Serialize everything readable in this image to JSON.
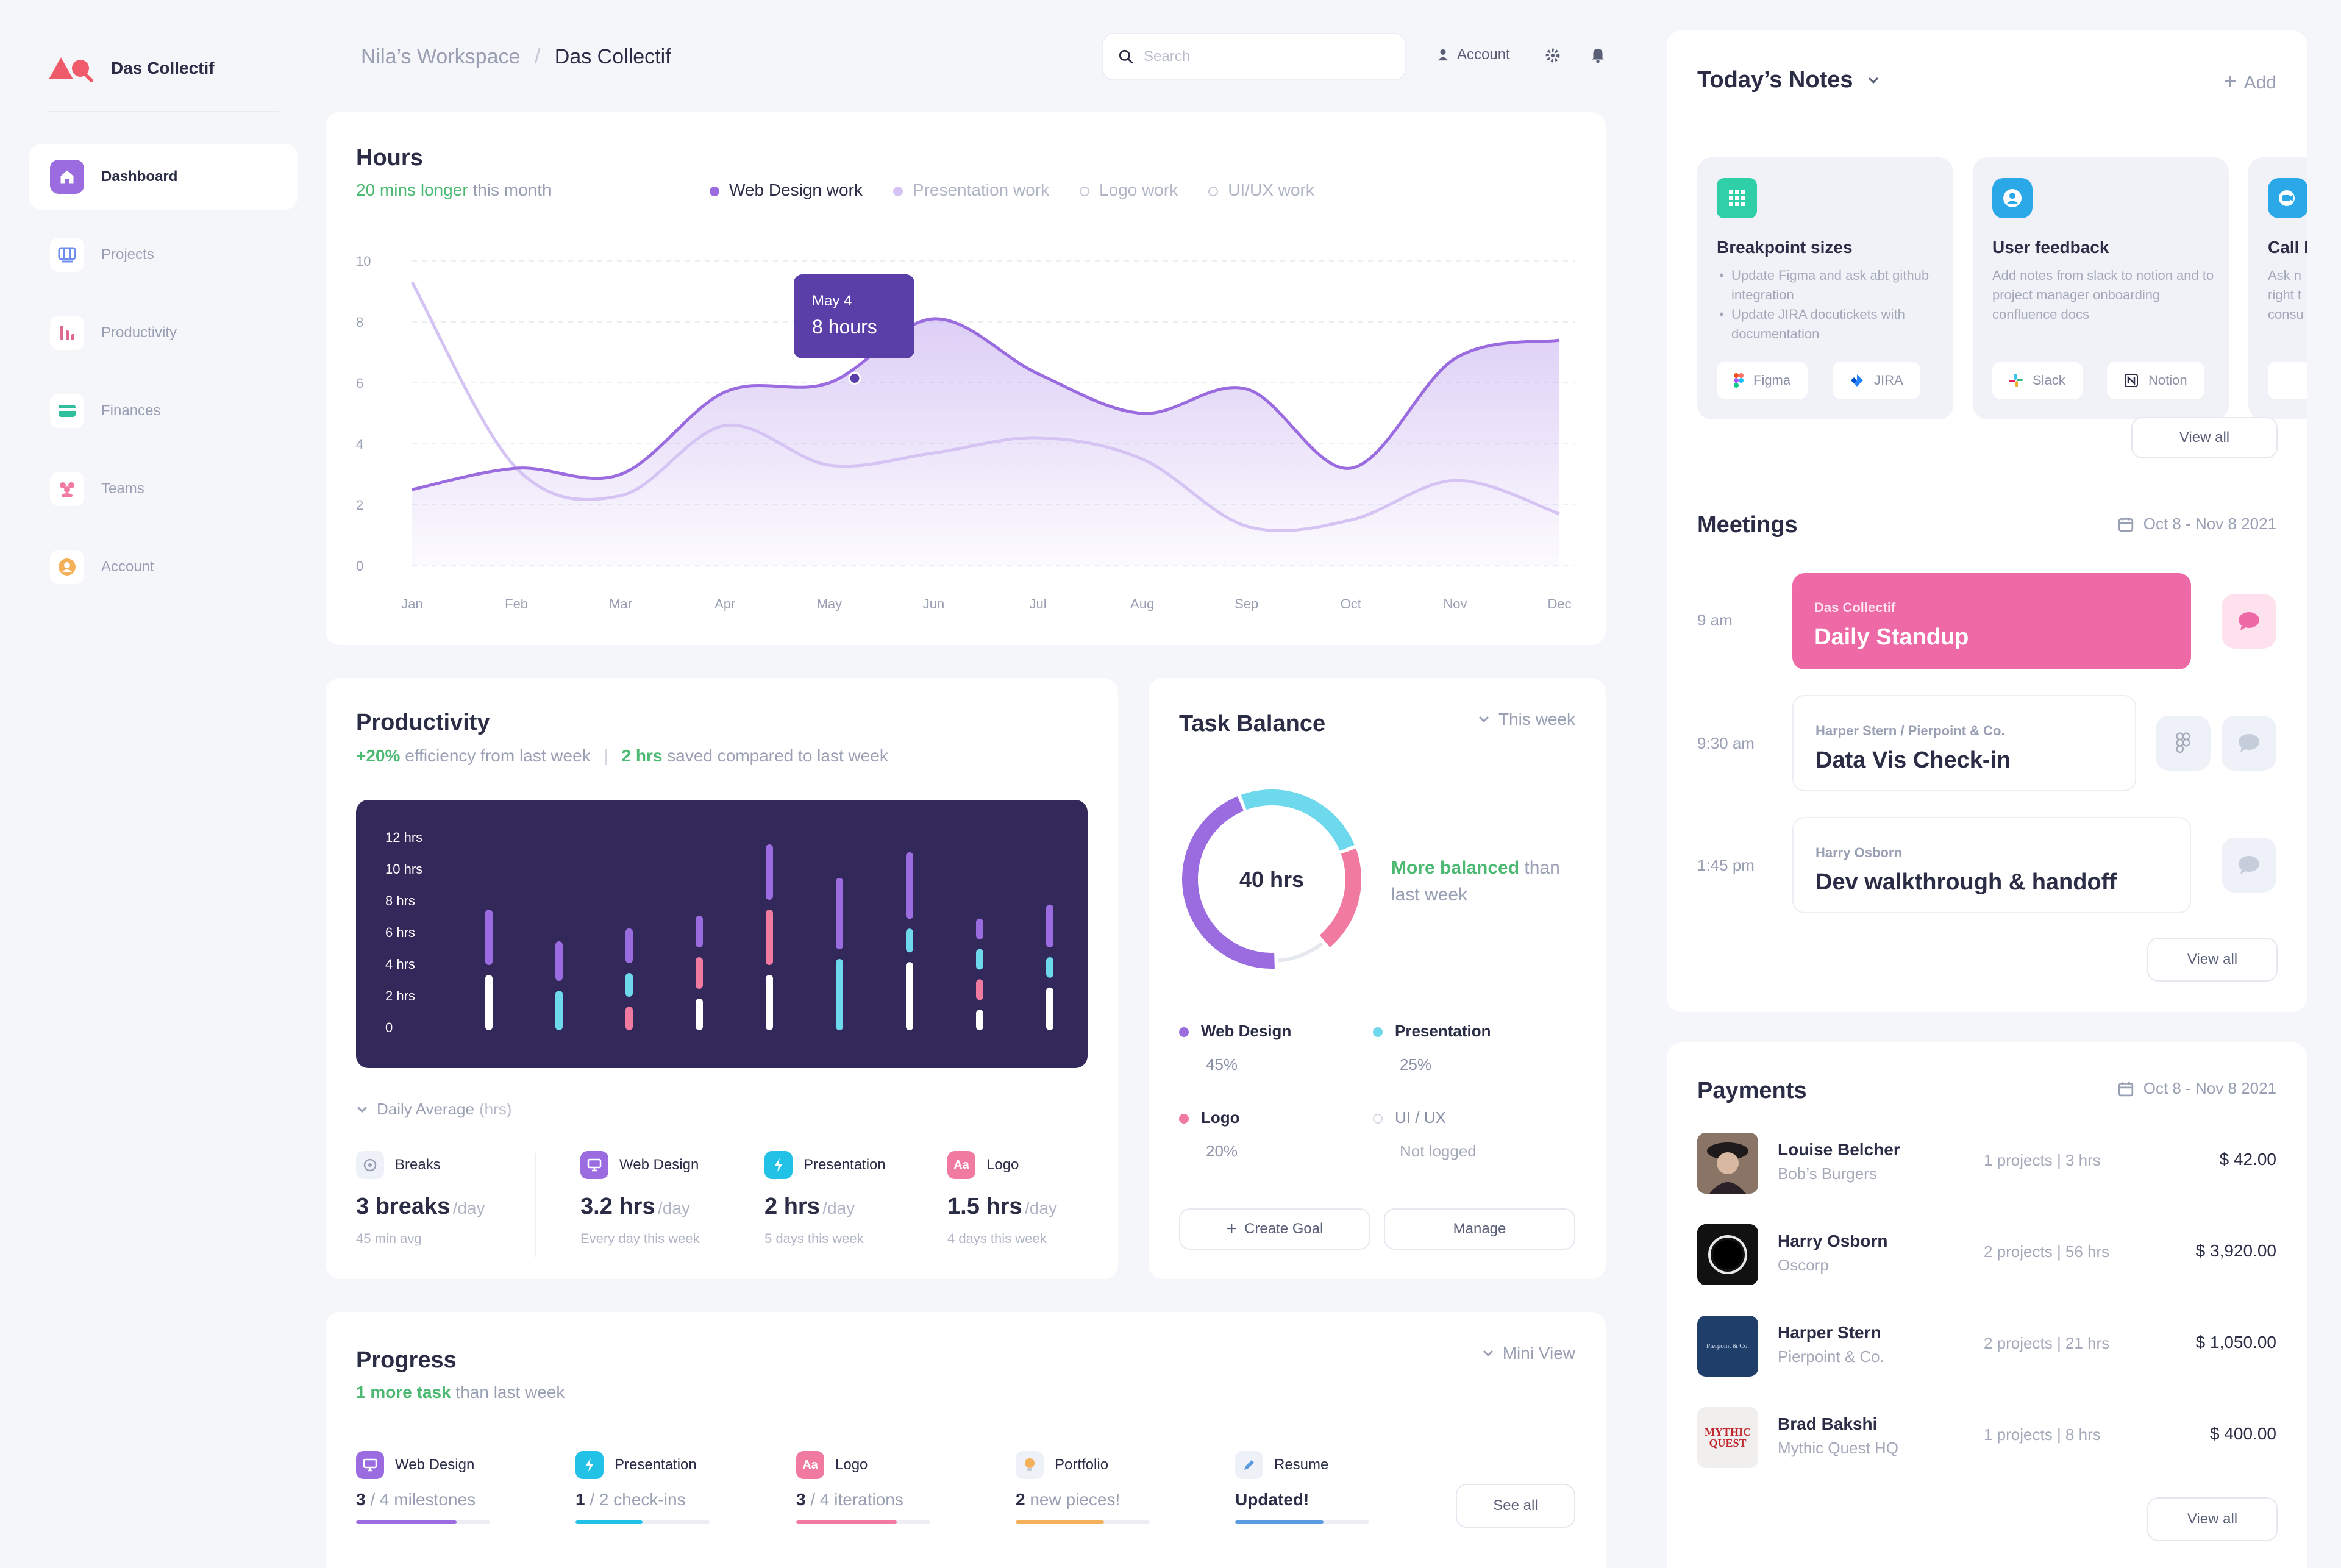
{
  "brand": {
    "name": "Das Collectif"
  },
  "sidebar": {
    "items": [
      {
        "label": "Dashboard",
        "icon": "home-icon",
        "color": "#9b6ce0",
        "active": true
      },
      {
        "label": "Projects",
        "icon": "projects-icon",
        "color": "#6f8df0"
      },
      {
        "label": "Productivity",
        "icon": "productivity-icon",
        "color": "#e06a8e"
      },
      {
        "label": "Finances",
        "icon": "finances-icon",
        "color": "#2fbf9b"
      },
      {
        "label": "Teams",
        "icon": "teams-icon",
        "color": "#f07aa0"
      },
      {
        "label": "Account",
        "icon": "account-icon",
        "color": "#f4b05a"
      }
    ]
  },
  "header": {
    "breadcrumb": {
      "parent": "Nila’s Workspace",
      "separator": "/",
      "current": "Das Collectif"
    },
    "search_placeholder": "Search",
    "account_label": "Account"
  },
  "hours": {
    "title": "Hours",
    "subtitle_highlight": "20 mins longer",
    "subtitle_rest": "this month",
    "legend": [
      {
        "label": "Web Design work",
        "color": "#9b6ce0",
        "active": true
      },
      {
        "label": "Presentation work",
        "color": "#d5c3f3",
        "active": false
      },
      {
        "label": "Logo work",
        "color": "#c5c9d6",
        "active": false
      },
      {
        "label": "UI/UX work",
        "color": "#c5c9d6",
        "active": false
      }
    ],
    "tooltip": {
      "date": "May 4",
      "value": "8 hours"
    }
  },
  "chart_data": {
    "type": "area",
    "categories": [
      "Jan",
      "Feb",
      "Mar",
      "Apr",
      "May",
      "Jun",
      "Jul",
      "Aug",
      "Sep",
      "Oct",
      "Nov",
      "Dec"
    ],
    "yticks": [
      0,
      2,
      4,
      6,
      8,
      10
    ],
    "ylim": [
      0,
      10
    ],
    "series": [
      {
        "name": "Web Design work",
        "values": [
          2.5,
          3.2,
          3.0,
          5.7,
          6.0,
          8.1,
          6.3,
          5.0,
          5.8,
          3.2,
          6.8,
          7.4
        ],
        "color": "#9b6ce0"
      },
      {
        "name": "Presentation work",
        "values": [
          9.3,
          3.2,
          2.3,
          4.6,
          3.3,
          3.7,
          4.2,
          3.5,
          1.3,
          1.5,
          2.8,
          1.7
        ],
        "color": "#d5c3f3"
      }
    ]
  },
  "productivity": {
    "title": "Productivity",
    "eff_highlight": "+20%",
    "eff_rest": "efficiency from last week",
    "saved_highlight": "2 hrs",
    "saved_rest": "saved compared to last week",
    "y_labels": [
      "12 hrs",
      "10 hrs",
      "8 hrs",
      "6 hrs",
      "4 hrs",
      "2 hrs",
      "0"
    ],
    "daily_avg_label": "Daily Average",
    "daily_avg_unit": "(hrs)",
    "stats": [
      {
        "name": "Breaks",
        "value": "3 breaks",
        "unit": "/day",
        "sub": "45 min avg",
        "color": "#eef1f7",
        "icon": "clock-icon"
      },
      {
        "name": "Web Design",
        "value": "3.2 hrs",
        "unit": "/day",
        "sub": "Every day this week",
        "color": "#9b6ce0",
        "icon": "monitor-icon"
      },
      {
        "name": "Presentation",
        "value": "2 hrs",
        "unit": "/day",
        "sub": "5 days this week",
        "color": "#22c1e6",
        "icon": "bolt-icon"
      },
      {
        "name": "Logo",
        "value": "1.5 hrs",
        "unit": "/day",
        "sub": "4 days this week",
        "color": "#f07aa0",
        "icon": "logo-icon"
      }
    ],
    "bars": [
      [
        {
          "v": 3.5,
          "c": "#ffffff"
        },
        {
          "v": 3.5,
          "c": "#9b6ce0"
        }
      ],
      [
        {
          "v": 2.5,
          "c": "#6ed8ec"
        },
        {
          "v": 2.5,
          "c": "#9b6ce0"
        }
      ],
      [
        {
          "v": 1.5,
          "c": "#f07aa0"
        },
        {
          "v": 1.5,
          "c": "#6ed8ec"
        },
        {
          "v": 2.2,
          "c": "#9b6ce0"
        }
      ],
      [
        {
          "v": 2,
          "c": "#ffffff"
        },
        {
          "v": 2,
          "c": "#f07aa0"
        },
        {
          "v": 2,
          "c": "#9b6ce0"
        }
      ],
      [
        {
          "v": 3.5,
          "c": "#ffffff"
        },
        {
          "v": 3.5,
          "c": "#f07aa0"
        },
        {
          "v": 3.5,
          "c": "#9b6ce0"
        }
      ],
      [
        {
          "v": 4.5,
          "c": "#6ed8ec"
        },
        {
          "v": 4.5,
          "c": "#9b6ce0"
        }
      ],
      [
        {
          "v": 4.3,
          "c": "#ffffff"
        },
        {
          "v": 1.5,
          "c": "#6ed8ec"
        },
        {
          "v": 4.2,
          "c": "#9b6ce0"
        }
      ],
      [
        {
          "v": 1.3,
          "c": "#ffffff"
        },
        {
          "v": 1.3,
          "c": "#f07aa0"
        },
        {
          "v": 1.3,
          "c": "#6ed8ec"
        },
        {
          "v": 1.3,
          "c": "#9b6ce0"
        }
      ],
      [
        {
          "v": 2.7,
          "c": "#ffffff"
        },
        {
          "v": 1.3,
          "c": "#6ed8ec"
        },
        {
          "v": 2.7,
          "c": "#9b6ce0"
        }
      ]
    ]
  },
  "task_balance": {
    "title": "Task Balance",
    "period": "This week",
    "center": "40 hrs",
    "note_highlight": "More balanced",
    "note_rest": "than last week",
    "items": [
      {
        "label": "Web Design",
        "value": "45%",
        "color": "#9b6ce0",
        "pct": 45
      },
      {
        "label": "Presentation",
        "value": "25%",
        "color": "#6ed8ec",
        "pct": 25
      },
      {
        "label": "Logo",
        "value": "20%",
        "color": "#f07aa0",
        "pct": 20
      },
      {
        "label": "UI / UX",
        "value": "Not logged",
        "color": "#e6e8ef",
        "pct": 10
      }
    ],
    "create_goal": "Create Goal",
    "manage": "Manage"
  },
  "progress": {
    "title": "Progress",
    "sub_highlight": "1 more task",
    "sub_rest": "than last week",
    "view": "Mini View",
    "see_all": "See all",
    "items": [
      {
        "name": "Web Design",
        "bold": "3",
        "rest": " / 4 milestones",
        "color": "#9b6ce0",
        "fill": 0.75,
        "icon": "monitor-icon"
      },
      {
        "name": "Presentation",
        "bold": "1",
        "rest": " / 2 check-ins",
        "color": "#22c1e6",
        "fill": 0.5,
        "icon": "bolt-icon"
      },
      {
        "name": "Logo",
        "bold": "3",
        "rest": " / 4 iterations",
        "color": "#f07aa0",
        "fill": 0.75,
        "icon": "logo-icon"
      },
      {
        "name": "Portfolio",
        "bold": "2",
        "rest": " new pieces!",
        "color": "#f4b05a",
        "fill": 0.66,
        "icon": "bulb-icon"
      },
      {
        "name": "Resume",
        "bold": "Updated!",
        "rest": "",
        "color": "#5a9be0",
        "fill": 0.66,
        "icon": "pencil-icon"
      }
    ]
  },
  "notes": {
    "title": "Today’s Notes",
    "add": "Add",
    "view_all": "View all",
    "cards": [
      {
        "title": "Breakpoint sizes",
        "bullets": [
          "Update Figma and ask abt github integration",
          "Update JIRA docutickets with documentation"
        ],
        "tags": [
          "Figma",
          "JIRA"
        ],
        "color": "#2fcfa8"
      },
      {
        "title": "User feedback",
        "text": "Add notes from slack to notion and to project manager onboarding confluence docs",
        "tags": [
          "Slack",
          "Notion"
        ],
        "color": "#2aa8e8"
      },
      {
        "title": "Call l",
        "text": "Ask n right t consu",
        "color": "#2aa8e8"
      }
    ]
  },
  "meetings": {
    "title": "Meetings",
    "range": "Oct 8 - Nov 8 2021",
    "view_all": "View all",
    "items": [
      {
        "time": "9 am",
        "org": "Das Collectif",
        "title": "Daily Standup",
        "highlight": true
      },
      {
        "time": "9:30 am",
        "org": "Harper Stern / Pierpoint & Co.",
        "title": "Data Vis Check-in"
      },
      {
        "time": "1:45 pm",
        "org": "Harry Osborn",
        "title": "Dev walkthrough & handoff"
      }
    ]
  },
  "payments": {
    "title": "Payments",
    "range": "Oct 8 - Nov 8 2021",
    "view_all": "View all",
    "rows": [
      {
        "name": "Louise Belcher",
        "org": "Bob’s Burgers",
        "projects": "1 projects | 3 hrs",
        "amount": "$ 42.00"
      },
      {
        "name": "Harry Osborn",
        "org": "Oscorp",
        "projects": "2 projects | 56 hrs",
        "amount": "$ 3,920.00"
      },
      {
        "name": "Harper Stern",
        "org": "Pierpoint & Co.",
        "projects": "2 projects | 21 hrs",
        "amount": "$ 1,050.00",
        "avatar_text": "Pierpoint & Co."
      },
      {
        "name": "Brad Bakshi",
        "org": "Mythic Quest HQ",
        "projects": "1 projects | 8 hrs",
        "amount": "$ 400.00",
        "avatar_text": "MYTHIC QUEST"
      }
    ]
  }
}
